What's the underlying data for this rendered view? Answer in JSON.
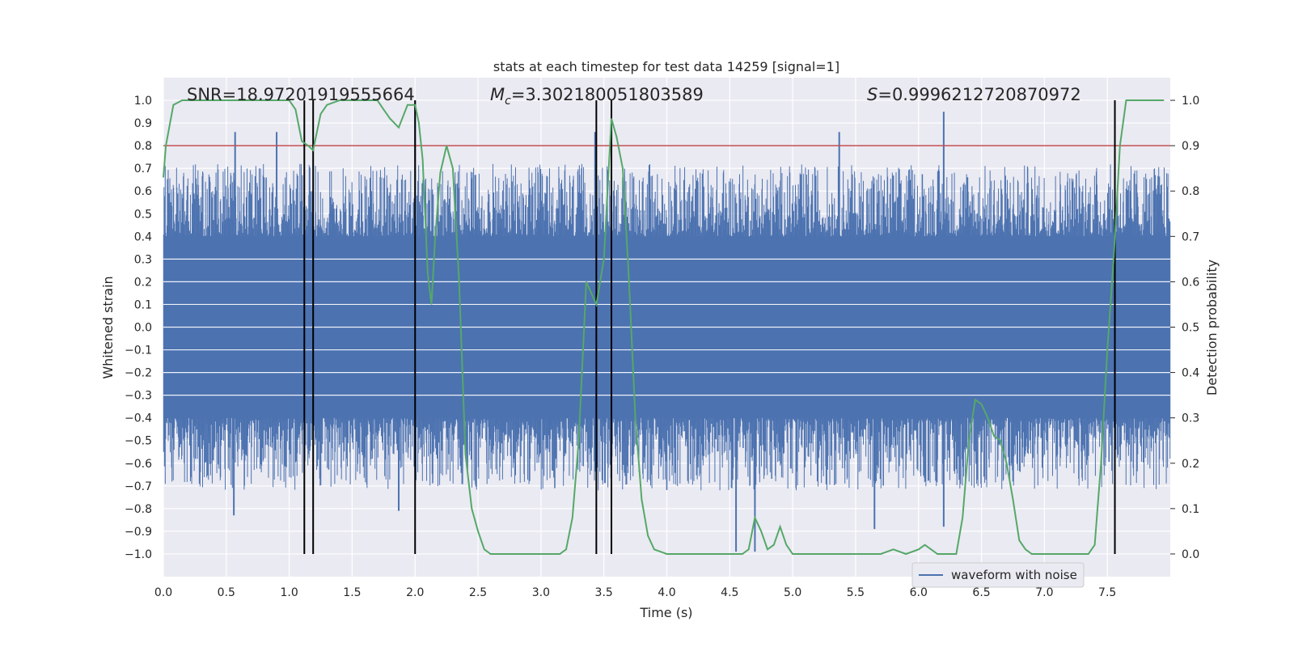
{
  "chart_data": {
    "type": "line",
    "title": "stats at each timestep for test data 14259 [signal=1]",
    "xlabel": "Time (s)",
    "ylabel_left": "Whitened strain",
    "ylabel_right": "Detection probability",
    "xlim": [
      0,
      8
    ],
    "ylim_left": [
      -1.1,
      1.1
    ],
    "ylim_right": [
      -0.05,
      1.05
    ],
    "x_ticks": [
      "0.0",
      "0.5",
      "1.0",
      "1.5",
      "2.0",
      "2.5",
      "3.0",
      "3.5",
      "4.0",
      "4.5",
      "5.0",
      "5.5",
      "6.0",
      "6.5",
      "7.0",
      "7.5"
    ],
    "y_left_ticks": [
      "1.0",
      "0.9",
      "0.8",
      "0.7",
      "0.6",
      "0.5",
      "0.4",
      "0.3",
      "0.2",
      "0.1",
      "0.0",
      "−0.1",
      "−0.2",
      "−0.3",
      "−0.4",
      "−0.5",
      "−0.6",
      "−0.7",
      "−0.8",
      "−0.9",
      "−1.0"
    ],
    "y_right_ticks": [
      "1.0",
      "0.9",
      "0.8",
      "0.7",
      "0.6",
      "0.5",
      "0.4",
      "0.3",
      "0.2",
      "0.1",
      "0.0"
    ],
    "grid": true,
    "legend_position": "lower-right",
    "annotations": {
      "snr": "SNR=18.97201919555664",
      "mc_symbol": "M",
      "mc_sub": "c",
      "mc_value": "=3.302180051803589",
      "s_symbol": "S",
      "s_value": "=0.9996212720870972"
    },
    "threshold": {
      "value": 0.9,
      "axis": "right",
      "color": "#c44e52"
    },
    "vertical_markers": [
      1.12,
      1.19,
      2.0,
      3.44,
      3.56,
      7.56
    ],
    "series": [
      {
        "name": "waveform with noise",
        "axis": "left",
        "color": "#4c72b0",
        "style": "noise-band",
        "core_band": [
          -0.4,
          0.4
        ],
        "peaks": [
          {
            "x": 0.57,
            "y": 0.86
          },
          {
            "x": 0.9,
            "y": 0.86
          },
          {
            "x": 2.0,
            "y": 1.0
          },
          {
            "x": 3.43,
            "y": 0.86
          },
          {
            "x": 5.37,
            "y": 0.86
          },
          {
            "x": 6.2,
            "y": 0.95
          },
          {
            "x": 0.56,
            "y": -0.83
          },
          {
            "x": 1.87,
            "y": -0.81
          },
          {
            "x": 4.55,
            "y": -0.99
          },
          {
            "x": 4.7,
            "y": -0.99
          },
          {
            "x": 5.65,
            "y": -0.89
          },
          {
            "x": 6.2,
            "y": -0.88
          }
        ]
      },
      {
        "name": "",
        "axis": "right",
        "color": "#55a868",
        "x": [
          0.0,
          0.02,
          0.08,
          0.15,
          0.25,
          0.4,
          0.55,
          0.7,
          0.85,
          1.0,
          1.05,
          1.1,
          1.15,
          1.19,
          1.25,
          1.3,
          1.4,
          1.5,
          1.6,
          1.7,
          1.75,
          1.8,
          1.87,
          1.94,
          2.0,
          2.03,
          2.06,
          2.1,
          2.13,
          2.16,
          2.2,
          2.25,
          2.3,
          2.35,
          2.4,
          2.45,
          2.5,
          2.55,
          2.6,
          2.7,
          2.8,
          2.9,
          3.0,
          3.1,
          3.15,
          3.2,
          3.25,
          3.3,
          3.36,
          3.44,
          3.5,
          3.56,
          3.6,
          3.65,
          3.7,
          3.75,
          3.8,
          3.85,
          3.9,
          4.0,
          4.2,
          4.4,
          4.5,
          4.55,
          4.6,
          4.65,
          4.7,
          4.75,
          4.8,
          4.85,
          4.9,
          4.95,
          5.0,
          5.1,
          5.2,
          5.4,
          5.6,
          5.7,
          5.8,
          5.9,
          6.0,
          6.05,
          6.1,
          6.15,
          6.2,
          6.25,
          6.3,
          6.35,
          6.4,
          6.45,
          6.5,
          6.55,
          6.6,
          6.65,
          6.7,
          6.75,
          6.8,
          6.85,
          6.9,
          7.0,
          7.2,
          7.3,
          7.35,
          7.4,
          7.45,
          7.5,
          7.55,
          7.6,
          7.65,
          7.7,
          7.75,
          7.8,
          7.9,
          7.95
        ],
        "y": [
          0.83,
          0.9,
          0.99,
          1.0,
          1.0,
          1.0,
          1.0,
          1.0,
          1.0,
          1.0,
          0.98,
          0.91,
          0.9,
          0.89,
          0.97,
          0.99,
          1.0,
          1.0,
          1.0,
          1.0,
          0.98,
          0.96,
          0.94,
          0.99,
          0.99,
          0.95,
          0.87,
          0.62,
          0.55,
          0.7,
          0.84,
          0.9,
          0.85,
          0.6,
          0.22,
          0.1,
          0.05,
          0.01,
          0.0,
          0.0,
          0.0,
          0.0,
          0.0,
          0.0,
          0.0,
          0.01,
          0.08,
          0.25,
          0.6,
          0.55,
          0.65,
          0.96,
          0.92,
          0.85,
          0.6,
          0.3,
          0.12,
          0.04,
          0.01,
          0.0,
          0.0,
          0.0,
          0.0,
          0.0,
          0.0,
          0.01,
          0.08,
          0.05,
          0.01,
          0.02,
          0.06,
          0.02,
          0.0,
          0.0,
          0.0,
          0.0,
          0.0,
          0.0,
          0.01,
          0.0,
          0.01,
          0.02,
          0.01,
          0.0,
          0.0,
          0.0,
          0.0,
          0.08,
          0.25,
          0.34,
          0.33,
          0.3,
          0.26,
          0.25,
          0.2,
          0.12,
          0.03,
          0.01,
          0.0,
          0.0,
          0.0,
          0.0,
          0.0,
          0.02,
          0.2,
          0.45,
          0.65,
          0.9,
          1.0,
          1.0,
          1.0,
          1.0,
          1.0,
          1.0
        ]
      }
    ]
  }
}
